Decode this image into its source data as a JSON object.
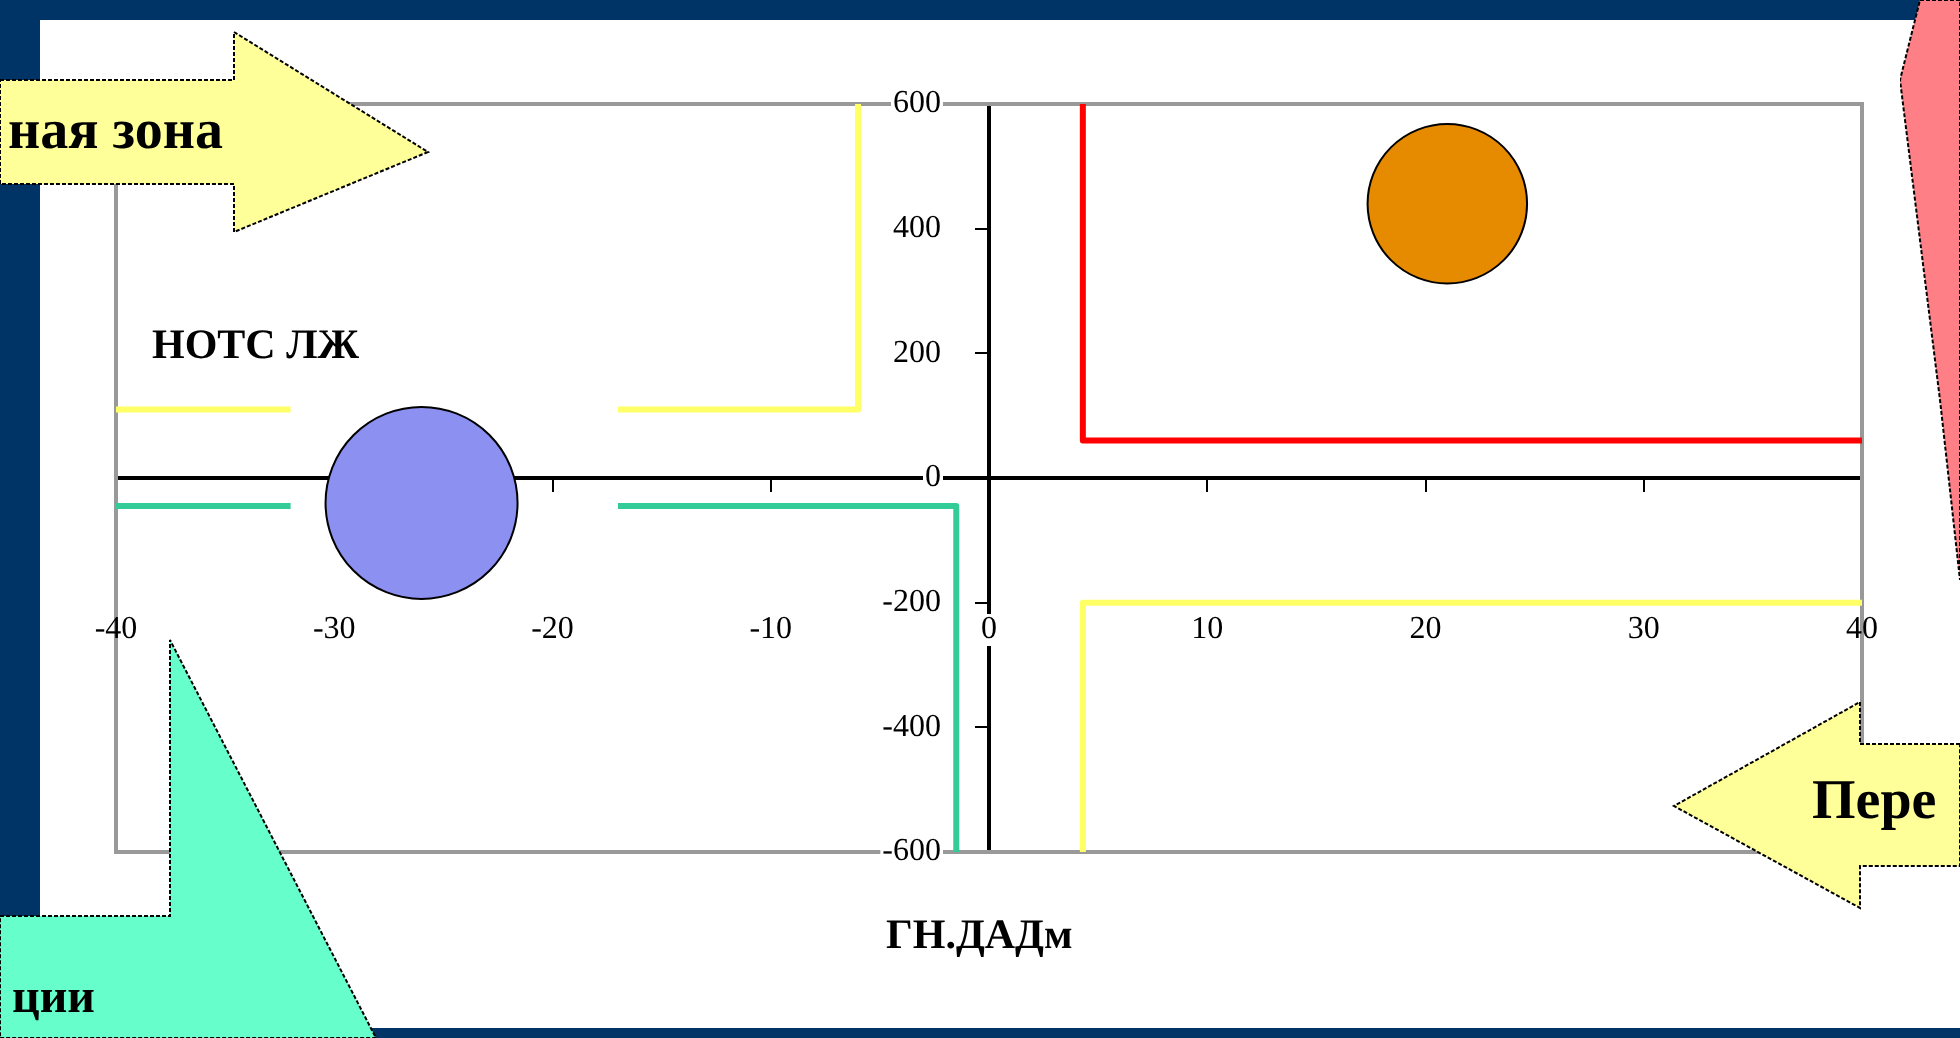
{
  "chart_data": {
    "type": "bubble",
    "xlabel": "ГН.ДАДм",
    "ylabel": "НОТС ЛЖ",
    "annotations": [
      "ная зона",
      "Пере",
      "ции"
    ],
    "xlim": [
      -40,
      40
    ],
    "xticks": [
      -40,
      -30,
      -20,
      -10,
      0,
      10,
      20,
      30,
      40
    ],
    "ylim": [
      -600,
      600
    ],
    "yticks": [
      -600,
      -400,
      -200,
      0,
      200,
      400,
      600
    ],
    "line_style": "solid",
    "series": [
      {
        "type": "line",
        "color": "#ffff66",
        "x": [
          -40,
          -32,
          -24,
          -17,
          -6,
          -6
        ],
        "values": [
          110,
          110,
          null,
          110,
          110,
          600
        ]
      },
      {
        "type": "line",
        "color": "#33cc99",
        "x": [
          -40,
          -32,
          -24,
          -17,
          -1.5,
          -1.5
        ],
        "values": [
          -45,
          -45,
          null,
          -45,
          -45,
          -600
        ]
      },
      {
        "type": "line",
        "color": "#ff0000",
        "x": [
          4.3,
          4.3,
          40
        ],
        "values": [
          600,
          60,
          60
        ]
      },
      {
        "type": "line",
        "color": "#ffff66",
        "x": [
          4.3,
          4.3,
          40
        ],
        "values": [
          -600,
          -200,
          -200
        ]
      },
      {
        "color": "#8c90f0",
        "x": [
          -26
        ],
        "values": [
          -40
        ],
        "sizes": [
          1
        ]
      },
      {
        "color": "#e68a00",
        "x": [
          21
        ],
        "values": [
          440
        ],
        "sizes": [
          0.69
        ]
      }
    ]
  }
}
